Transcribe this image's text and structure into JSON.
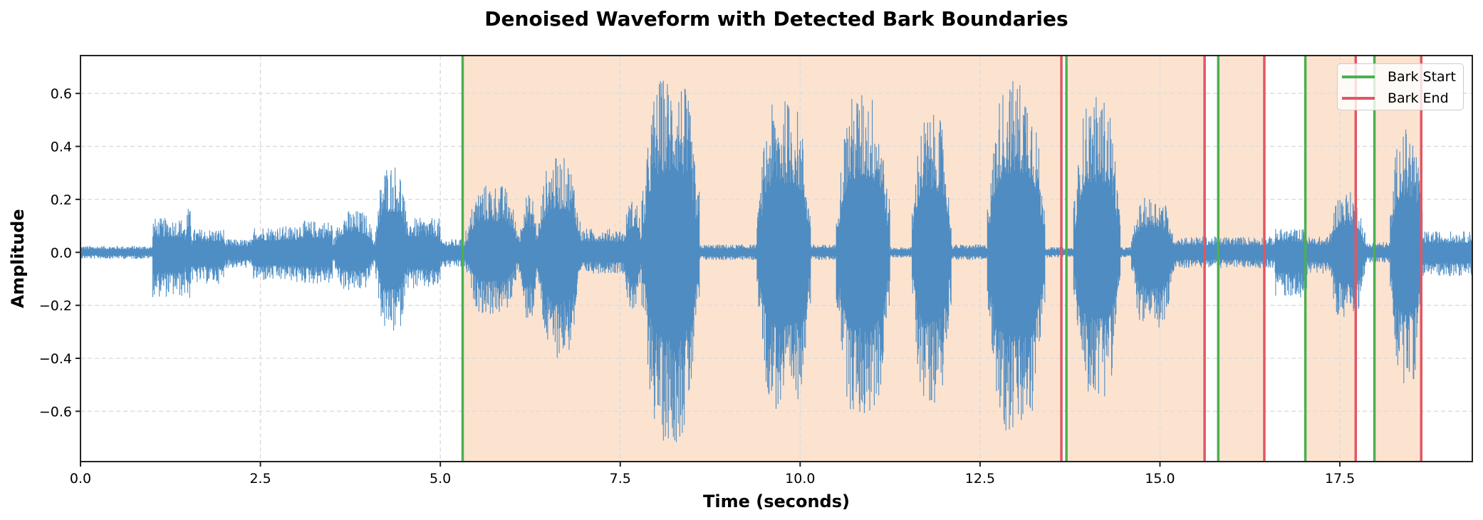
{
  "chart_data": {
    "type": "line",
    "title": "Denoised Waveform with Detected Bark Boundaries",
    "xlabel": "Time (seconds)",
    "ylabel": "Amplitude",
    "xlim": [
      0.0,
      19.34
    ],
    "ylim": [
      -0.79,
      0.743
    ],
    "xticks": [
      0.0,
      2.5,
      5.0,
      7.5,
      10.0,
      12.5,
      15.0,
      17.5
    ],
    "xtick_labels": [
      "0.0",
      "2.5",
      "5.0",
      "7.5",
      "10.0",
      "12.5",
      "15.0",
      "17.5"
    ],
    "yticks": [
      -0.6,
      -0.4,
      -0.2,
      0.0,
      0.2,
      0.4,
      0.6
    ],
    "ytick_labels": [
      "−0.6",
      "−0.4",
      "−0.2",
      "0.0",
      "0.2",
      "0.4",
      "0.6"
    ],
    "grid": true,
    "legend_position": "upper right",
    "legend": [
      {
        "label": "Bark Start",
        "color": "#4caf50"
      },
      {
        "label": "Bark End",
        "color": "#e05763"
      }
    ],
    "bark_start_times": [
      5.31,
      13.7,
      15.81,
      17.02,
      17.98
    ],
    "bark_end_times": [
      13.63,
      15.62,
      16.45,
      17.72,
      18.63
    ],
    "bark_segments": [
      [
        5.31,
        13.63
      ],
      [
        13.7,
        15.62
      ],
      [
        15.81,
        16.45
      ],
      [
        17.02,
        17.72
      ],
      [
        17.98,
        18.63
      ]
    ],
    "waveform_envelope": {
      "description": "Approximate amplitude envelope of the waveform (time in seconds, positive/negative peak amplitude)",
      "segments": [
        {
          "t0": 0.0,
          "t1": 1.0,
          "pos": 0.025,
          "neg": 0.025
        },
        {
          "t0": 1.0,
          "t1": 1.45,
          "pos": 0.13,
          "neg": 0.17
        },
        {
          "t0": 1.45,
          "t1": 1.55,
          "pos": 0.17,
          "neg": 0.18
        },
        {
          "t0": 1.55,
          "t1": 2.0,
          "pos": 0.09,
          "neg": 0.12
        },
        {
          "t0": 2.0,
          "t1": 2.4,
          "pos": 0.05,
          "neg": 0.06
        },
        {
          "t0": 2.4,
          "t1": 3.0,
          "pos": 0.1,
          "neg": 0.11
        },
        {
          "t0": 3.0,
          "t1": 3.5,
          "pos": 0.12,
          "neg": 0.12
        },
        {
          "t0": 3.5,
          "t1": 4.1,
          "pos": 0.16,
          "neg": 0.15
        },
        {
          "t0": 4.1,
          "t1": 4.55,
          "pos": 0.34,
          "neg": 0.31
        },
        {
          "t0": 4.55,
          "t1": 5.0,
          "pos": 0.13,
          "neg": 0.14
        },
        {
          "t0": 5.0,
          "t1": 5.35,
          "pos": 0.05,
          "neg": 0.06
        },
        {
          "t0": 5.35,
          "t1": 6.1,
          "pos": 0.26,
          "neg": 0.24
        },
        {
          "t0": 6.1,
          "t1": 6.35,
          "pos": 0.22,
          "neg": 0.26
        },
        {
          "t0": 6.35,
          "t1": 6.95,
          "pos": 0.36,
          "neg": 0.4
        },
        {
          "t0": 6.95,
          "t1": 7.55,
          "pos": 0.09,
          "neg": 0.08
        },
        {
          "t0": 7.55,
          "t1": 7.8,
          "pos": 0.2,
          "neg": 0.22
        },
        {
          "t0": 7.8,
          "t1": 8.6,
          "pos": 0.67,
          "neg": 0.72
        },
        {
          "t0": 8.6,
          "t1": 9.4,
          "pos": 0.03,
          "neg": 0.03
        },
        {
          "t0": 9.4,
          "t1": 10.15,
          "pos": 0.58,
          "neg": 0.61
        },
        {
          "t0": 10.15,
          "t1": 10.5,
          "pos": 0.03,
          "neg": 0.03
        },
        {
          "t0": 10.5,
          "t1": 11.25,
          "pos": 0.61,
          "neg": 0.63
        },
        {
          "t0": 11.25,
          "t1": 11.55,
          "pos": 0.02,
          "neg": 0.02
        },
        {
          "t0": 11.55,
          "t1": 12.1,
          "pos": 0.52,
          "neg": 0.57
        },
        {
          "t0": 12.1,
          "t1": 12.6,
          "pos": 0.03,
          "neg": 0.03
        },
        {
          "t0": 12.6,
          "t1": 13.4,
          "pos": 0.66,
          "neg": 0.7
        },
        {
          "t0": 13.4,
          "t1": 13.8,
          "pos": 0.02,
          "neg": 0.02
        },
        {
          "t0": 13.8,
          "t1": 14.45,
          "pos": 0.59,
          "neg": 0.55
        },
        {
          "t0": 14.45,
          "t1": 14.6,
          "pos": 0.02,
          "neg": 0.02
        },
        {
          "t0": 14.6,
          "t1": 15.2,
          "pos": 0.21,
          "neg": 0.3
        },
        {
          "t0": 15.2,
          "t1": 16.6,
          "pos": 0.06,
          "neg": 0.06
        },
        {
          "t0": 16.6,
          "t1": 17.05,
          "pos": 0.09,
          "neg": 0.17
        },
        {
          "t0": 17.05,
          "t1": 17.35,
          "pos": 0.06,
          "neg": 0.08
        },
        {
          "t0": 17.35,
          "t1": 17.85,
          "pos": 0.23,
          "neg": 0.26
        },
        {
          "t0": 17.85,
          "t1": 18.2,
          "pos": 0.04,
          "neg": 0.04
        },
        {
          "t0": 18.2,
          "t1": 18.65,
          "pos": 0.47,
          "neg": 0.5
        },
        {
          "t0": 18.65,
          "t1": 19.34,
          "pos": 0.08,
          "neg": 0.09
        }
      ]
    },
    "colors": {
      "waveform": "#3f84c0",
      "shade": "#fbe3d0",
      "start_line": "#4caf50",
      "end_line": "#e05763",
      "grid": "#dddddd",
      "axes": "#222222"
    }
  }
}
